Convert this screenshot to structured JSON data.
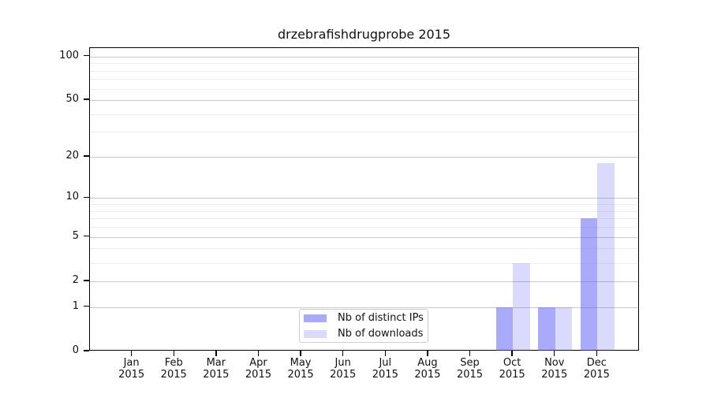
{
  "title": "drzebrafishdrugprobe 2015",
  "colors": {
    "ip_bar": "rgba(85,85,245,0.5)",
    "dl_bar": "rgba(85,85,245,0.22)",
    "grid_major": "#c9c9c9",
    "grid_minor": "#eeeeee",
    "axis": "#000000"
  },
  "legend": {
    "items": [
      {
        "label": "Nb of distinct IPs",
        "color_key": "ip_bar"
      },
      {
        "label": "Nb of downloads",
        "color_key": "dl_bar"
      }
    ]
  },
  "chart_data": {
    "type": "bar",
    "title": "drzebrafishdrugprobe 2015",
    "year": "2015",
    "months": [
      "Jan",
      "Feb",
      "Mar",
      "Apr",
      "May",
      "Jun",
      "Jul",
      "Aug",
      "Sep",
      "Oct",
      "Nov",
      "Dec"
    ],
    "series": [
      {
        "name": "Nb of distinct IPs",
        "values": [
          0,
          0,
          0,
          0,
          0,
          0,
          0,
          0,
          0,
          1,
          1,
          7
        ]
      },
      {
        "name": "Nb of downloads",
        "values": [
          0,
          0,
          0,
          0,
          0,
          0,
          0,
          0,
          0,
          3,
          1,
          18
        ]
      }
    ],
    "yscale": "log1p",
    "yticks": [
      0,
      1,
      2,
      5,
      10,
      20,
      50,
      100
    ],
    "minor_gridlines": [
      3,
      4,
      6,
      7,
      8,
      9,
      30,
      40,
      60,
      70,
      80,
      90
    ],
    "ylim": [
      0,
      114
    ],
    "grid": true,
    "legend_position": "bottom-center"
  }
}
